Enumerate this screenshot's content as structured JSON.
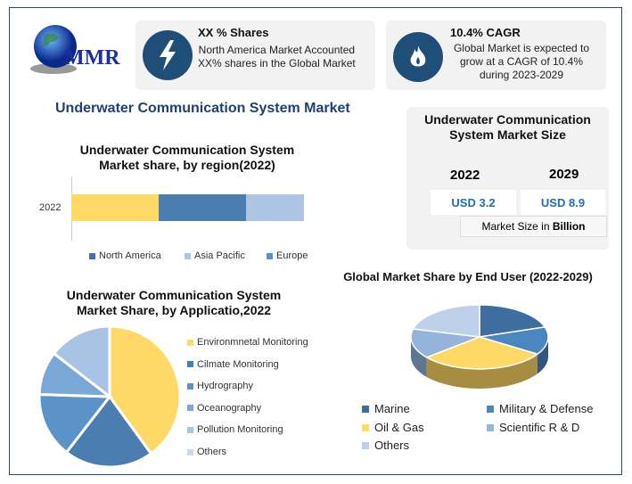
{
  "logo": {
    "text": "MMR"
  },
  "card1": {
    "icon": "lightning-icon",
    "title": "XX % Shares",
    "line1": "North America Market Accounted",
    "line2": "XX% shares in the Global Market"
  },
  "card2": {
    "icon": "flame-icon",
    "title": "10.4% CAGR",
    "line1": "Global Market is expected to",
    "line2": "grow at a CAGR of 10.4%",
    "line3": "during 2023-2029"
  },
  "main_title": "Underwater Communication System Market",
  "size_card": {
    "title1": "Underwater Communication",
    "title2": "System Market Size",
    "year1": "2022",
    "year2": "2029",
    "value1": "USD 3.2",
    "value2": "USD 8.9",
    "note_prefix": "Market Size in ",
    "note_bold": "Billion"
  },
  "colors": {
    "yellow": "#FFD966",
    "blue": "#4A7EB0",
    "lightblue": "#AEC4E3",
    "midblue": "#5B93C9",
    "paleblue": "#8FB3DC",
    "navy": "#1F4E79"
  },
  "chart_data": [
    {
      "type": "bar",
      "orientation": "horizontal",
      "stacked": true,
      "title1": "Underwater Communication System",
      "title2": "Market share, by region(2022)",
      "categories": [
        "2022"
      ],
      "series": [
        {
          "name": "North America",
          "values": [
            37.5
          ],
          "color": "#FFD966"
        },
        {
          "name": "Asia Pacific",
          "values": [
            37.5
          ],
          "color": "#4A7EB0"
        },
        {
          "name": "Europe",
          "values": [
            25
          ],
          "color": "#AEC4E3"
        }
      ],
      "legend": [
        {
          "label": "North America",
          "color": "#3F73A8"
        },
        {
          "label": "Asia Pacific",
          "color": "#AEC4E3"
        },
        {
          "label": "Europe",
          "color": "#5B93C9"
        }
      ],
      "legend_position": "bottom"
    },
    {
      "type": "pie",
      "title1": "Underwater Communication System",
      "title2": "Market Share, by Applicatio,2022",
      "slices": [
        {
          "label": "Environmnetal Monitoring",
          "value": 40,
          "color": "#FFD966"
        },
        {
          "label": "Cilmate Monitoring",
          "value": 20.5,
          "color": "#4A7EB0"
        },
        {
          "label": "Hydrography",
          "value": 15,
          "color": "#5B93C9"
        },
        {
          "label": "Oceanography",
          "value": 10,
          "color": "#7BA7D6"
        },
        {
          "label": "Pollution Monitoring",
          "value": 14.5,
          "color": "#A9C3E5"
        },
        {
          "label": "Others",
          "value": 0,
          "color": "#C9D9EE"
        }
      ],
      "legend_position": "right"
    },
    {
      "type": "pie",
      "3d": true,
      "title": "Global Market Share by End User (2022-2029)",
      "slices": [
        {
          "label": "Marine",
          "value": 20,
          "color": "#3F6E9E"
        },
        {
          "label": "Military & Defense",
          "value": 14,
          "color": "#4A86C0"
        },
        {
          "label": "Oil & Gas",
          "value": 30,
          "color": "#FFD966"
        },
        {
          "label": "Scientific R & D",
          "value": 15,
          "color": "#94B4DC"
        },
        {
          "label": "Others",
          "value": 21,
          "color": "#BFD1EA"
        }
      ],
      "legend_position": "bottom"
    }
  ]
}
